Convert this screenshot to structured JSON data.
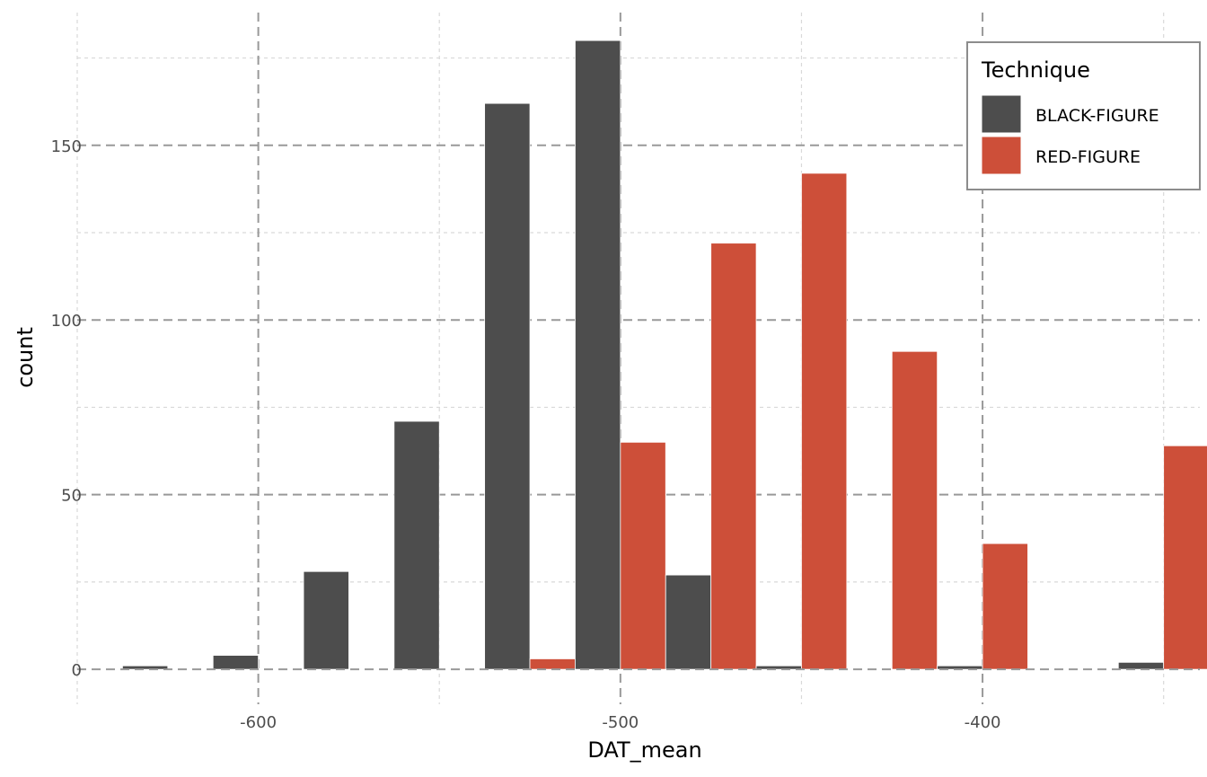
{
  "chart_data": {
    "type": "bar",
    "xlabel": "DAT_mean",
    "ylabel": "count",
    "xlim": [
      -650,
      -340
    ],
    "ylim": [
      -10,
      188
    ],
    "x_ticks": [
      -600,
      -500,
      -400
    ],
    "x_tick_labels": [
      "-600",
      "-500",
      "-400"
    ],
    "y_ticks": [
      0,
      50,
      100,
      150
    ],
    "y_tick_labels": [
      "0",
      "50",
      "100",
      "150"
    ],
    "grid": true,
    "legend": {
      "title": "Technique",
      "position": "top-right"
    },
    "bin_width": 25,
    "bin_centers": [
      -625,
      -600,
      -575,
      -550,
      -525,
      -500,
      -475,
      -450,
      -425,
      -400,
      -375,
      -350
    ],
    "series": [
      {
        "name": "BLACK-FIGURE",
        "color": "#4d4d4d",
        "values": [
          1,
          4,
          28,
          71,
          162,
          180,
          27,
          1,
          0,
          1,
          0,
          2
        ]
      },
      {
        "name": "RED-FIGURE",
        "color": "#cd4f39",
        "values": [
          0,
          0,
          0,
          0,
          3,
          65,
          122,
          142,
          91,
          36,
          0,
          64
        ]
      }
    ]
  }
}
